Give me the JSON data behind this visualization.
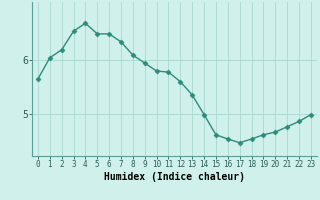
{
  "x": [
    0,
    1,
    2,
    3,
    4,
    5,
    6,
    7,
    8,
    9,
    10,
    11,
    12,
    13,
    14,
    15,
    16,
    17,
    18,
    19,
    20,
    21,
    22,
    23
  ],
  "y": [
    5.65,
    6.05,
    6.2,
    6.55,
    6.7,
    6.5,
    6.5,
    6.35,
    6.1,
    5.95,
    5.8,
    5.78,
    5.6,
    5.35,
    4.98,
    4.6,
    4.52,
    4.45,
    4.52,
    4.6,
    4.65,
    4.75,
    4.85,
    4.98
  ],
  "line_color": "#2e8b7a",
  "marker": "D",
  "markersize": 2.5,
  "linewidth": 1.0,
  "bg_color": "#cff0eb",
  "grid_color": "#a8d8d0",
  "xlabel": "Humidex (Indice chaleur)",
  "xlabel_fontsize": 7,
  "yticks": [
    5,
    6
  ],
  "xtick_fontsize": 5.5,
  "ytick_fontsize": 7,
  "xlim": [
    -0.5,
    23.5
  ],
  "ylim": [
    4.2,
    7.1
  ]
}
